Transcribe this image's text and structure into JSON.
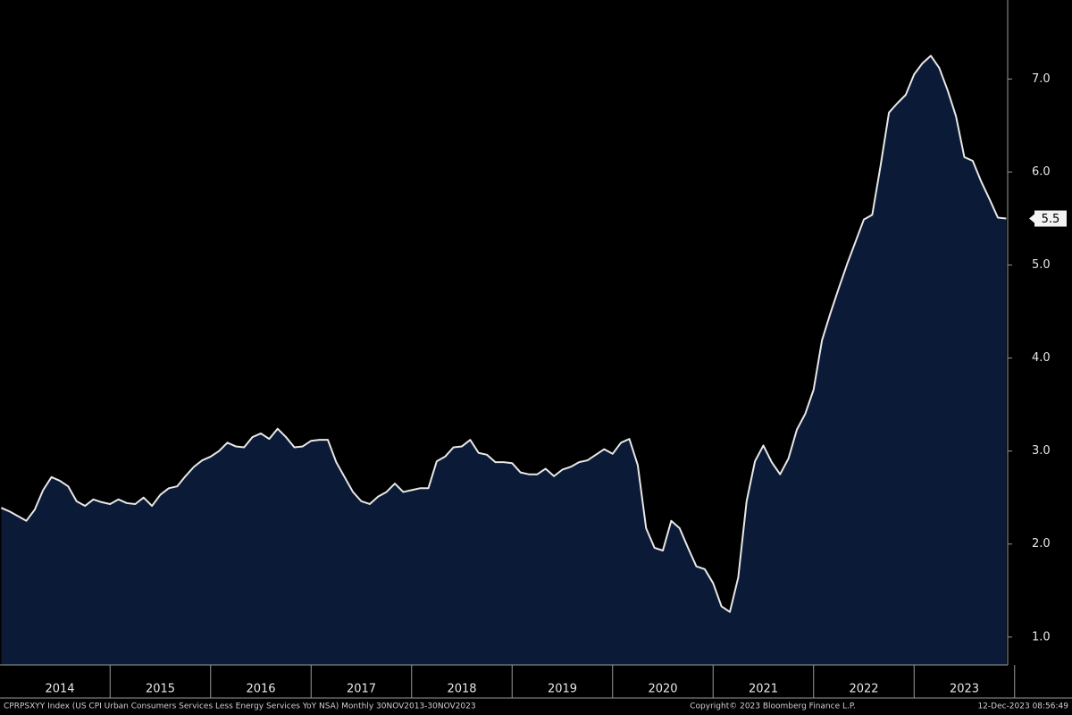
{
  "chart_data": {
    "type": "area",
    "footer_left": "CPRPSXYY Index (US CPI Urban Consumers Services Less Energy Services YoY NSA)  Monthly 30NOV2013-30NOV2023",
    "footer_center": "Copyright© 2023 Bloomberg Finance L.P.",
    "footer_right": "12-Dec-2023 08:56:49",
    "xticks": [
      "2014",
      "2015",
      "2016",
      "2017",
      "2018",
      "2019",
      "2020",
      "2021",
      "2022",
      "2023"
    ],
    "series": [
      {
        "color": "#e8e8e8",
        "fill": "#0b1a36",
        "last_label": "5.5",
        "values": [
          2.39,
          2.35,
          2.3,
          2.25,
          2.37,
          2.58,
          2.72,
          2.68,
          2.62,
          2.46,
          2.41,
          2.48,
          2.45,
          2.43,
          2.48,
          2.44,
          2.43,
          2.5,
          2.41,
          2.53,
          2.6,
          2.62,
          2.73,
          2.83,
          2.9,
          2.94,
          3.0,
          3.09,
          3.05,
          3.04,
          3.15,
          3.19,
          3.13,
          3.24,
          3.15,
          3.04,
          3.05,
          3.11,
          3.12,
          3.12,
          2.88,
          2.72,
          2.56,
          2.46,
          2.43,
          2.51,
          2.56,
          2.65,
          2.56,
          2.58,
          2.6,
          2.6,
          2.89,
          2.94,
          3.04,
          3.05,
          3.12,
          2.98,
          2.96,
          2.88,
          2.88,
          2.87,
          2.77,
          2.75,
          2.75,
          2.81,
          2.73,
          2.8,
          2.83,
          2.88,
          2.9,
          2.96,
          3.02,
          2.97,
          3.09,
          3.13,
          2.85,
          2.17,
          1.96,
          1.93,
          2.25,
          2.17,
          1.96,
          1.76,
          1.73,
          1.58,
          1.33,
          1.27,
          1.64,
          2.46,
          2.89,
          3.06,
          2.88,
          2.75,
          2.92,
          3.23,
          3.4,
          3.66,
          4.19,
          4.48,
          4.75,
          5.01,
          5.25,
          5.49,
          5.54,
          6.07,
          6.64,
          6.74,
          6.83,
          7.05,
          7.17,
          7.25,
          7.12,
          6.88,
          6.6,
          6.16,
          6.12,
          5.9,
          5.71,
          5.51,
          5.5
        ]
      }
    ],
    "ylim": [
      0.7,
      7.85
    ],
    "yticks": [
      {
        "value": 1,
        "label": "1.0"
      },
      {
        "value": 2,
        "label": "2.0"
      },
      {
        "value": 3,
        "label": "3.0"
      },
      {
        "value": 4,
        "label": "4.0"
      },
      {
        "value": 5,
        "label": "5.0"
      },
      {
        "value": 6,
        "label": "6.0"
      },
      {
        "value": 7,
        "label": "7.0"
      }
    ],
    "axis_color": "#9a9a9a"
  }
}
